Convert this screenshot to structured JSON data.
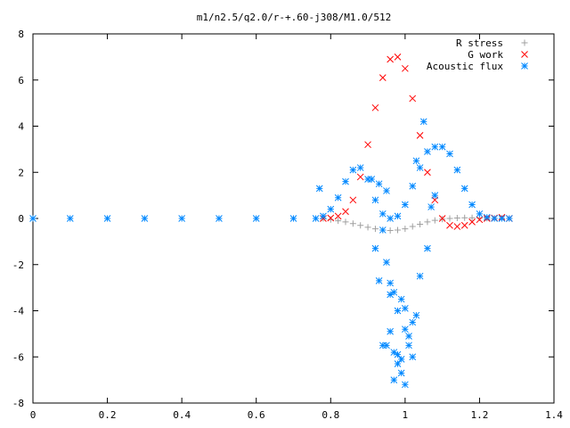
{
  "chart_data": {
    "type": "scatter",
    "title": "m1/n2.5/q2.0/r-+.60-j308/M1.0/512",
    "xlabel": "",
    "ylabel": "",
    "xlim": [
      0,
      1.4
    ],
    "ylim": [
      -8,
      8
    ],
    "x_ticks": [
      "0",
      "0.2",
      "0.4",
      "0.6",
      "0.8",
      "1",
      "1.2",
      "1.4"
    ],
    "y_ticks": [
      "8",
      "6",
      "4",
      "2",
      "0",
      "-2",
      "-4",
      "-6",
      "-8"
    ],
    "grid": false,
    "legend_position": "top-right",
    "series": [
      {
        "name": "R stress",
        "marker": "plus",
        "color": "#a0a0a0",
        "x": [
          0.78,
          0.8,
          0.82,
          0.84,
          0.86,
          0.88,
          0.9,
          0.92,
          0.94,
          0.96,
          0.98,
          1.0,
          1.02,
          1.04,
          1.06,
          1.08,
          1.1,
          1.12,
          1.14,
          1.16,
          1.18,
          1.2,
          1.22,
          1.24,
          1.26,
          1.28
        ],
        "y": [
          0.0,
          -0.05,
          -0.1,
          -0.15,
          -0.22,
          -0.3,
          -0.38,
          -0.45,
          -0.5,
          -0.52,
          -0.5,
          -0.45,
          -0.35,
          -0.25,
          -0.15,
          -0.08,
          -0.03,
          0.0,
          0.02,
          0.03,
          0.03,
          0.02,
          0.01,
          0.0,
          0.0,
          0.0
        ]
      },
      {
        "name": "G work",
        "marker": "cross",
        "color": "#ff0000",
        "x": [
          0.78,
          0.8,
          0.82,
          0.84,
          0.86,
          0.88,
          0.9,
          0.92,
          0.94,
          0.96,
          0.98,
          1.0,
          1.02,
          1.04,
          1.06,
          1.08,
          1.1,
          1.12,
          1.14,
          1.16,
          1.18,
          1.2,
          1.22,
          1.24,
          1.26,
          1.28
        ],
        "y": [
          0.0,
          0.02,
          0.1,
          0.3,
          0.8,
          1.8,
          3.2,
          4.8,
          6.1,
          6.9,
          7.0,
          6.5,
          5.2,
          3.6,
          2.0,
          0.8,
          0.0,
          -0.3,
          -0.35,
          -0.3,
          -0.15,
          -0.05,
          0.0,
          0.02,
          0.05,
          0.0
        ]
      },
      {
        "name": "Acoustic flux",
        "marker": "star",
        "color": "#0088ff",
        "x": [
          0.0,
          0.1,
          0.2,
          0.3,
          0.4,
          0.5,
          0.6,
          0.7,
          0.76,
          0.78,
          0.8,
          0.82,
          0.84,
          0.86,
          0.88,
          0.9,
          0.92,
          0.94,
          0.96,
          0.98,
          1.0,
          1.02,
          1.04,
          1.06,
          1.08,
          1.1,
          1.12,
          1.14,
          1.16,
          1.18,
          1.2,
          1.22,
          1.24,
          1.26,
          1.28,
          0.77,
          0.91,
          0.93,
          0.95,
          0.92,
          0.94,
          0.95,
          0.96,
          0.97,
          0.98,
          0.99,
          1.0,
          1.01,
          1.02,
          0.94,
          0.96,
          0.98,
          1.0,
          0.93,
          0.97,
          0.99,
          1.01,
          1.03,
          0.95,
          0.98,
          1.0,
          1.02,
          0.96,
          1.04,
          1.06,
          1.07,
          1.05,
          1.03,
          1.08,
          0.97,
          0.99
        ],
        "y": [
          0.0,
          0.0,
          0.0,
          0.0,
          0.0,
          0.0,
          0.0,
          0.0,
          0.0,
          0.1,
          0.4,
          0.9,
          1.6,
          2.1,
          2.2,
          1.7,
          0.8,
          0.2,
          0.0,
          0.1,
          0.6,
          1.4,
          2.2,
          2.9,
          3.1,
          3.1,
          2.8,
          2.1,
          1.3,
          0.6,
          0.2,
          0.05,
          0.0,
          0.0,
          0.0,
          1.3,
          1.7,
          1.5,
          1.2,
          -1.3,
          -0.5,
          -1.9,
          -2.8,
          -3.2,
          -4.0,
          -3.5,
          -4.8,
          -5.5,
          -6.0,
          -5.5,
          -4.9,
          -6.3,
          -7.2,
          -2.7,
          -7.0,
          -6.7,
          -5.1,
          -4.2,
          -5.5,
          -5.9,
          -3.9,
          -4.5,
          -3.3,
          -2.5,
          -1.3,
          0.5,
          4.2,
          2.5,
          1.0,
          -5.8,
          -6.1
        ]
      }
    ]
  }
}
